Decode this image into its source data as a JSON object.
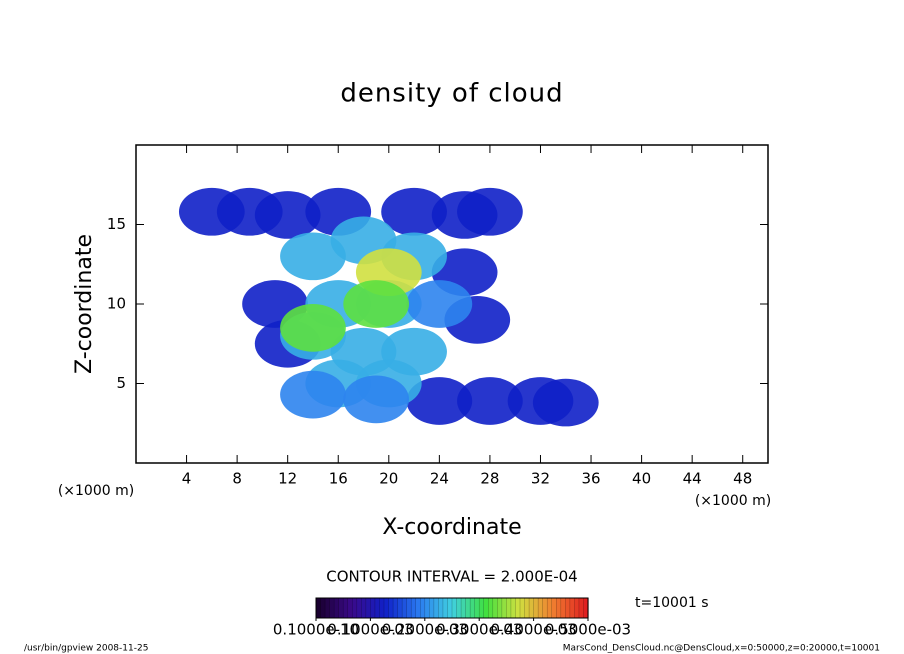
{
  "chart_data": {
    "type": "contour",
    "title": "density of cloud",
    "x_label": "X-coordinate",
    "y_label": "Z-coordinate",
    "x_unit": "(×1000 m)",
    "y_unit": "(×1000 m)",
    "xlim": [
      0,
      50
    ],
    "xticks": [
      4,
      8,
      12,
      16,
      20,
      24,
      28,
      32,
      36,
      40,
      44,
      48
    ],
    "ylim": [
      0,
      20
    ],
    "yticks": [
      5,
      10,
      15
    ],
    "x": [
      6,
      9,
      12,
      16,
      22,
      26,
      28,
      24,
      28,
      32,
      34,
      11,
      12,
      27,
      26,
      14,
      18,
      22,
      16,
      20,
      24,
      14,
      18,
      22,
      16,
      20,
      14,
      19,
      20,
      19,
      14
    ],
    "y": [
      15.8,
      15.8,
      15.6,
      15.8,
      15.8,
      15.6,
      15.8,
      3.9,
      3.9,
      3.9,
      3.8,
      10,
      7.5,
      9,
      12,
      13,
      14,
      13,
      10,
      10,
      10,
      8,
      7,
      7,
      5,
      5,
      4.3,
      4,
      12,
      10,
      8.5
    ],
    "values": [
      5e-05,
      5e-05,
      5e-05,
      5e-05,
      5e-05,
      5e-05,
      5e-05,
      5e-05,
      5e-05,
      5e-05,
      5e-05,
      5e-05,
      5e-05,
      5e-05,
      5e-05,
      0.00015,
      0.00015,
      0.00015,
      0.00015,
      0.00015,
      0.00012,
      0.00015,
      0.00015,
      0.00015,
      0.00015,
      0.00015,
      0.00012,
      0.00012,
      0.0003,
      0.00025,
      0.00025
    ],
    "contour_interval": "CONTOUR INTERVAL = 2.000E-04",
    "time_label": "t=10001 s",
    "colormap": [
      "#1a0030",
      "#3a0a8a",
      "#1020c8",
      "#2a7af0",
      "#40d0e0",
      "#40e040",
      "#d0e040",
      "#f08030",
      "#e02020"
    ],
    "clim": [
      1e-11,
      0.0005
    ],
    "colorbar_ticks": [
      {
        "value": 1e-11,
        "label": "0.1000e-10"
      },
      {
        "value": 0.0001,
        "label": "0.1000e-03"
      },
      {
        "value": 0.0002,
        "label": "0.2000e-03"
      },
      {
        "value": 0.0003,
        "label": "0.3000e-03"
      },
      {
        "value": 0.0004,
        "label": "0.4000e-03"
      },
      {
        "value": 0.0005,
        "label": "0.5000e-03"
      }
    ],
    "footer_left": "/usr/bin/gpview  2008-11-25",
    "footer_right": "MarsCond_DensCloud.nc@DensCloud,x=0:50000,z=0:20000,t=10001"
  }
}
